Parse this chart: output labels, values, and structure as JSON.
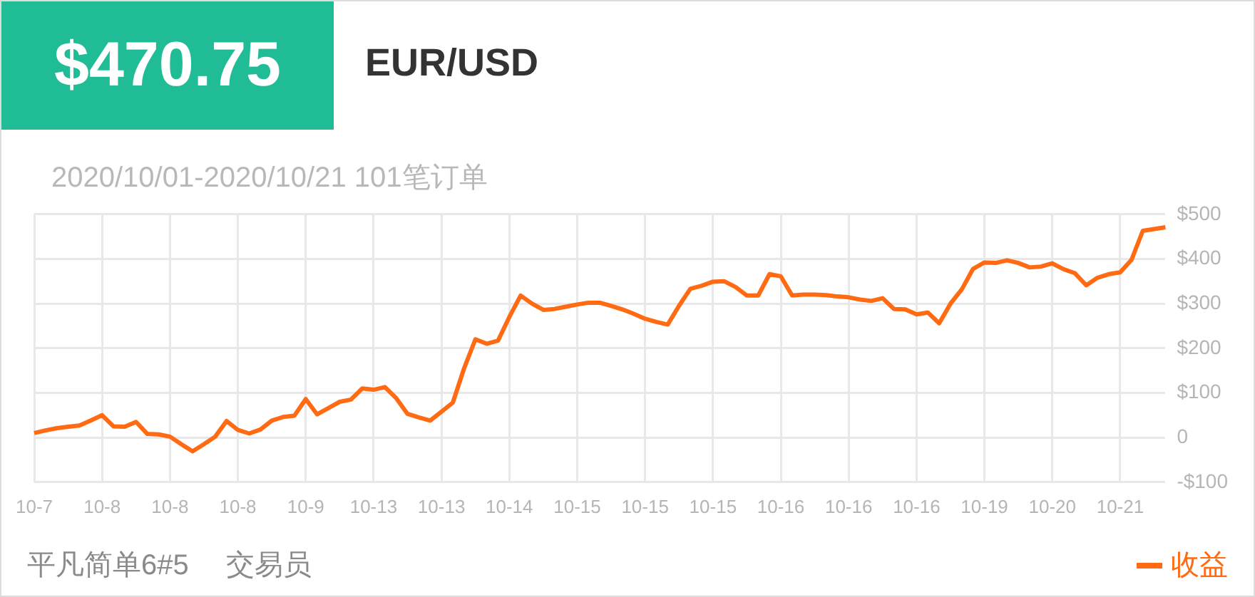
{
  "chart_data": {
    "type": "line",
    "title": "EUR/USD",
    "subtitle": "2020/10/01-2020/10/21 101笔订单",
    "annotations": [
      "$470.75",
      "平凡简单6#5",
      "交易员"
    ],
    "categories": [
      "10-7",
      null,
      null,
      null,
      null,
      null,
      "10-8",
      null,
      null,
      null,
      null,
      null,
      "10-8",
      null,
      null,
      null,
      null,
      null,
      "10-8",
      null,
      null,
      null,
      null,
      null,
      "10-9",
      null,
      null,
      null,
      null,
      null,
      "10-13",
      null,
      null,
      null,
      null,
      null,
      "10-13",
      null,
      null,
      null,
      null,
      null,
      "10-14",
      null,
      null,
      null,
      null,
      null,
      "10-15",
      null,
      null,
      null,
      null,
      null,
      "10-15",
      null,
      null,
      null,
      null,
      null,
      "10-15",
      null,
      null,
      null,
      null,
      null,
      "10-16",
      null,
      null,
      null,
      null,
      null,
      "10-16",
      null,
      null,
      null,
      null,
      null,
      "10-16",
      null,
      null,
      null,
      null,
      null,
      "10-19",
      null,
      null,
      null,
      null,
      null,
      "10-20",
      null,
      null,
      null,
      null,
      null,
      "10-21",
      null,
      null,
      null,
      null
    ],
    "series": [
      {
        "name": "收益",
        "color": "#ff6a13",
        "values": [
          10,
          16,
          21,
          24,
          27,
          38,
          50,
          25,
          24,
          35,
          8,
          7,
          2,
          -15,
          -31,
          -15,
          2,
          37,
          17,
          9,
          18,
          38,
          46,
          49,
          86,
          52,
          66,
          80,
          85,
          110,
          107,
          113,
          88,
          53,
          45,
          38,
          58,
          78,
          155,
          220,
          210,
          217,
          270,
          318,
          300,
          286,
          288,
          293,
          298,
          302,
          302,
          295,
          287,
          277,
          266,
          259,
          253,
          295,
          333,
          340,
          349,
          350,
          337,
          318,
          318,
          366,
          361,
          318,
          320,
          320,
          319,
          316,
          314,
          309,
          306,
          312,
          288,
          287,
          276,
          280,
          256,
          300,
          332,
          378,
          392,
          391,
          397,
          391,
          381,
          383,
          390,
          377,
          368,
          341,
          358,
          366,
          370,
          398,
          463,
          467,
          471
        ]
      }
    ],
    "ylim": [
      -100,
      500
    ],
    "yticks": [
      {
        "value": -100,
        "label": "-$100"
      },
      {
        "value": 0,
        "label": "0"
      },
      {
        "value": 100,
        "label": "$100"
      },
      {
        "value": 200,
        "label": "$200"
      },
      {
        "value": 300,
        "label": "$300"
      },
      {
        "value": 400,
        "label": "$400"
      },
      {
        "value": 500,
        "label": "$500"
      }
    ],
    "grid": true,
    "legend": "bottom right",
    "marker": "none",
    "line_style": "solid"
  }
}
